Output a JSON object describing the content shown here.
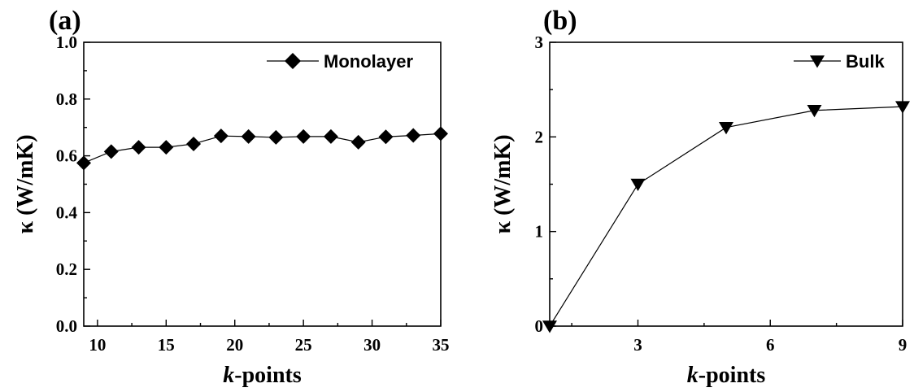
{
  "chart_data": [
    {
      "panel_label": "(a)",
      "type": "line",
      "xlabel_italic": "k",
      "xlabel_rest": "-points",
      "ylabel": "κ (W/mK)",
      "xlim": [
        9,
        35
      ],
      "ylim": [
        0.0,
        1.0
      ],
      "xticks": [
        10,
        15,
        20,
        25,
        30,
        35
      ],
      "xtick_labels": [
        "10",
        "15",
        "20",
        "25",
        "30",
        "35"
      ],
      "yticks": [
        0.0,
        0.2,
        0.4,
        0.6,
        0.8,
        1.0
      ],
      "ytick_labels": [
        "0.0",
        "0.2",
        "0.4",
        "0.6",
        "0.8",
        "1.0"
      ],
      "legend_position": "top-right",
      "marker": "diamond",
      "series": [
        {
          "name": "Monolayer",
          "x": [
            9,
            11,
            13,
            15,
            17,
            19,
            21,
            23,
            25,
            27,
            29,
            31,
            33,
            35
          ],
          "y": [
            0.575,
            0.615,
            0.63,
            0.63,
            0.642,
            0.67,
            0.668,
            0.665,
            0.668,
            0.668,
            0.648,
            0.667,
            0.672,
            0.678
          ]
        }
      ]
    },
    {
      "panel_label": "(b)",
      "type": "line",
      "xlabel_italic": "k",
      "xlabel_rest": "-points",
      "ylabel": "κ (W/mK)",
      "xlim": [
        1,
        9
      ],
      "ylim": [
        0,
        3
      ],
      "xticks": [
        3,
        6,
        9
      ],
      "xtick_labels": [
        "3",
        "6",
        "9"
      ],
      "yticks": [
        0,
        1,
        2,
        3
      ],
      "ytick_labels": [
        "0",
        "1",
        "2",
        "3"
      ],
      "legend_position": "top-right",
      "marker": "triangle-down",
      "series": [
        {
          "name": "Bulk",
          "x": [
            1,
            3,
            5,
            7,
            9
          ],
          "y": [
            0.0,
            1.5,
            2.1,
            2.28,
            2.32
          ]
        }
      ]
    }
  ]
}
